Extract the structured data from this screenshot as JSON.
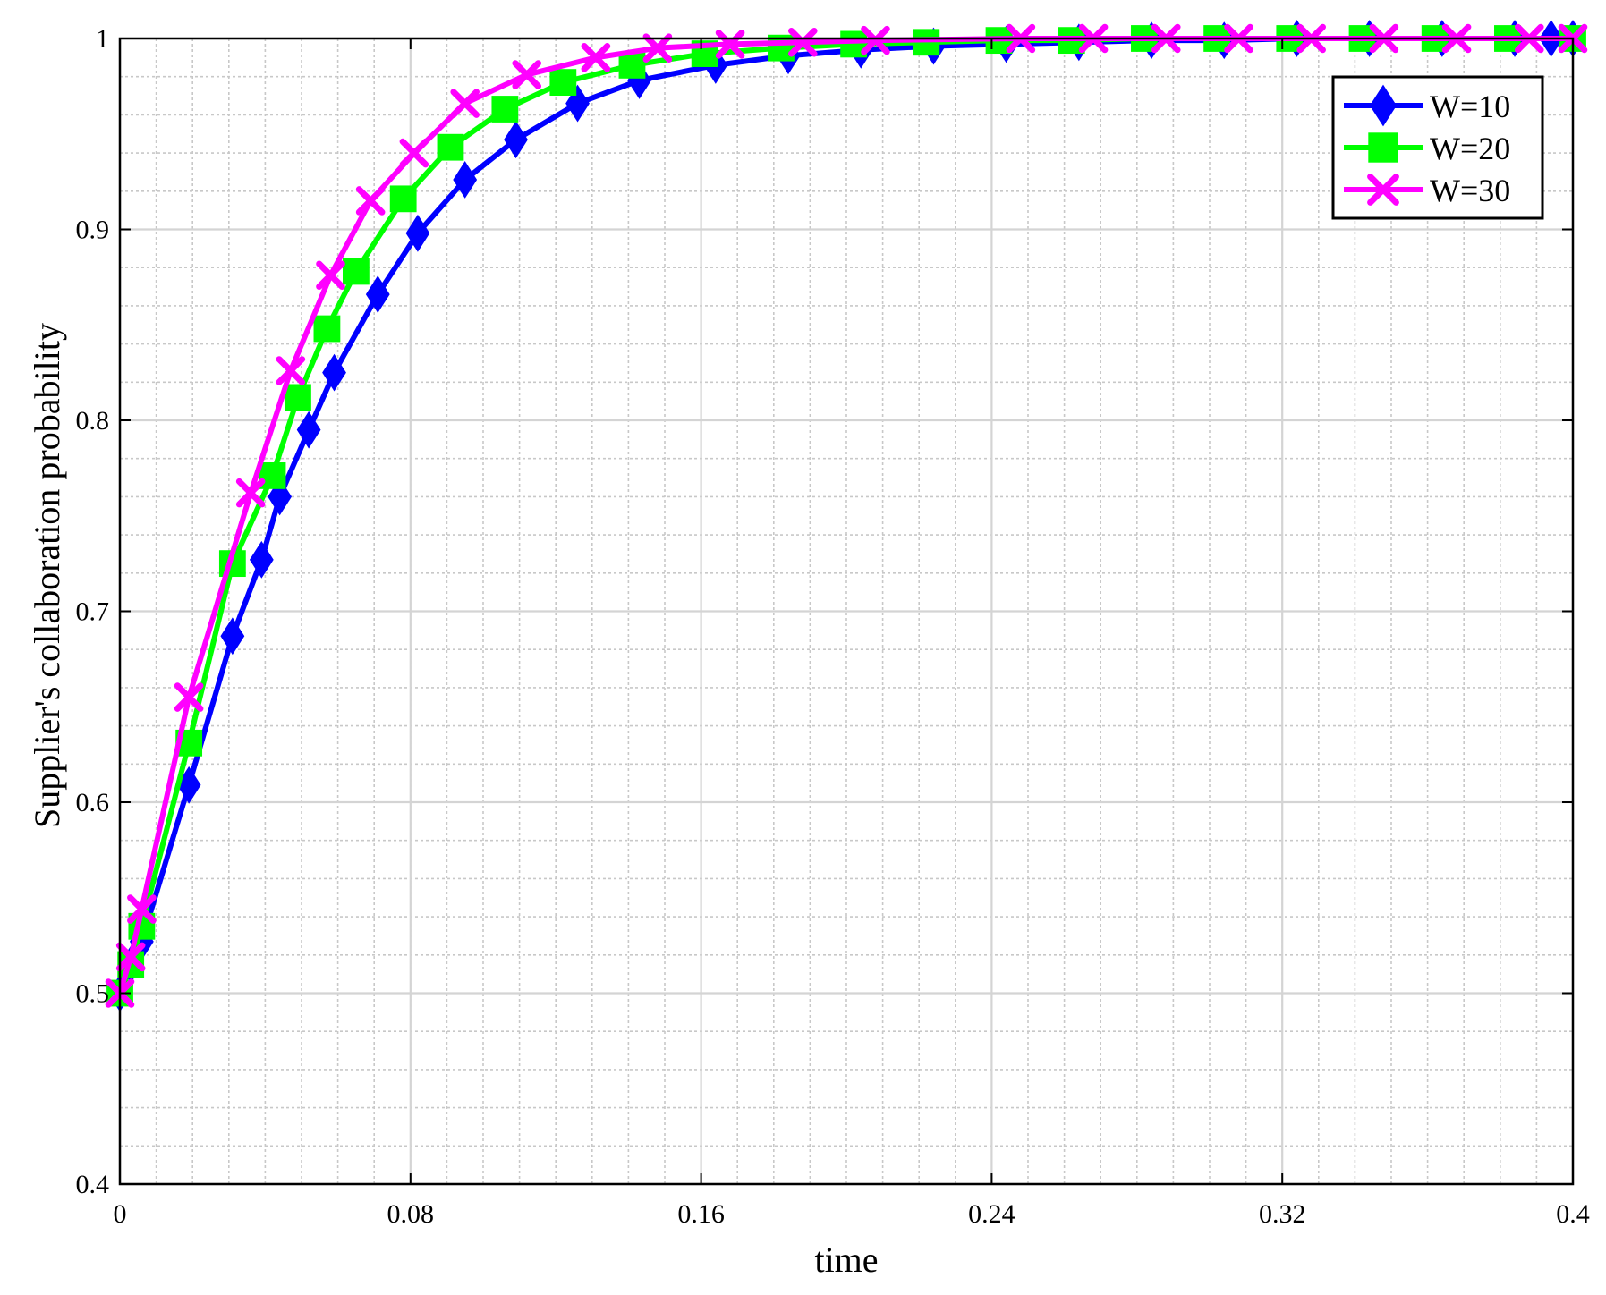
{
  "chart_data": {
    "type": "line",
    "xlabel": "time",
    "ylabel": "Supplier's collaboration probability",
    "xlim": [
      0,
      0.4
    ],
    "ylim": [
      0.4,
      1.0
    ],
    "xticks": [
      0,
      0.08,
      0.16,
      0.24,
      0.32,
      0.4
    ],
    "xtick_labels": [
      "0",
      "0.08",
      "0.16",
      "0.24",
      "0.32",
      "0.4"
    ],
    "yticks": [
      0.4,
      0.5,
      0.6,
      0.7,
      0.8,
      0.9,
      1.0
    ],
    "ytick_labels": [
      "0.4",
      "0.5",
      "0.6",
      "0.7",
      "0.8",
      "0.9",
      "1"
    ],
    "grid": true,
    "minor_grid": true,
    "legend_position": "top-right",
    "series": [
      {
        "name": "W=10",
        "color": "#0000FF",
        "marker": "diamond",
        "x": [
          0,
          0.003,
          0.006,
          0.019,
          0.031,
          0.039,
          0.044,
          0.052,
          0.059,
          0.071,
          0.082,
          0.095,
          0.109,
          0.126,
          0.143,
          0.164,
          0.184,
          0.204,
          0.224,
          0.244,
          0.264,
          0.284,
          0.304,
          0.324,
          0.344,
          0.364,
          0.384,
          0.394,
          0.4
        ],
        "y": [
          0.5,
          0.515,
          0.527,
          0.609,
          0.687,
          0.727,
          0.76,
          0.795,
          0.825,
          0.866,
          0.898,
          0.926,
          0.947,
          0.966,
          0.978,
          0.986,
          0.991,
          0.994,
          0.996,
          0.997,
          0.998,
          0.999,
          0.999,
          1.0,
          1.0,
          1.0,
          1.0,
          1.0,
          1.0
        ]
      },
      {
        "name": "W=20",
        "color": "#00FF00",
        "marker": "square",
        "x": [
          0,
          0.003,
          0.006,
          0.019,
          0.031,
          0.042,
          0.049,
          0.057,
          0.065,
          0.078,
          0.091,
          0.106,
          0.122,
          0.141,
          0.161,
          0.182,
          0.202,
          0.222,
          0.242,
          0.262,
          0.282,
          0.302,
          0.322,
          0.342,
          0.362,
          0.382,
          0.4
        ],
        "y": [
          0.5,
          0.515,
          0.535,
          0.631,
          0.725,
          0.771,
          0.812,
          0.848,
          0.878,
          0.916,
          0.943,
          0.963,
          0.977,
          0.986,
          0.992,
          0.995,
          0.997,
          0.998,
          0.999,
          0.999,
          1.0,
          1.0,
          1.0,
          1.0,
          1.0,
          1.0,
          1.0
        ]
      },
      {
        "name": "W=30",
        "color": "#FF00FF",
        "marker": "x",
        "x": [
          0,
          0.003,
          0.006,
          0.019,
          0.036,
          0.047,
          0.058,
          0.069,
          0.081,
          0.095,
          0.112,
          0.131,
          0.148,
          0.168,
          0.188,
          0.208,
          0.248,
          0.268,
          0.288,
          0.308,
          0.328,
          0.348,
          0.368,
          0.388,
          0.4
        ],
        "y": [
          0.5,
          0.519,
          0.544,
          0.655,
          0.762,
          0.826,
          0.876,
          0.915,
          0.94,
          0.966,
          0.981,
          0.99,
          0.995,
          0.997,
          0.998,
          0.999,
          1.0,
          1.0,
          1.0,
          1.0,
          1.0,
          1.0,
          1.0,
          1.0,
          1.0
        ]
      }
    ]
  }
}
